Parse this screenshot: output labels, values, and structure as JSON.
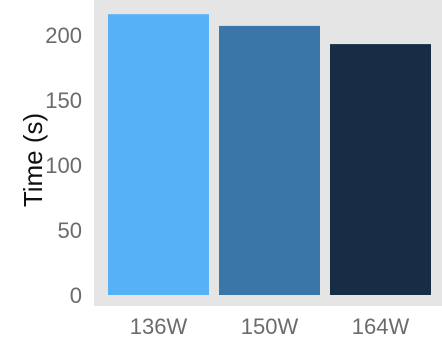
{
  "chart_data": {
    "type": "bar",
    "title": "",
    "xlabel": "",
    "ylabel": "Time (s)",
    "categories": [
      "136W",
      "150W",
      "164W"
    ],
    "values": [
      216,
      207,
      193
    ],
    "colors": [
      "#56B1F7",
      "#3A77A8",
      "#172D45"
    ],
    "ylim": [
      0,
      226
    ],
    "yticks": [
      0,
      50,
      100,
      150,
      200
    ],
    "grid": false,
    "panel_background": "#E5E5E5",
    "legend": "none"
  }
}
